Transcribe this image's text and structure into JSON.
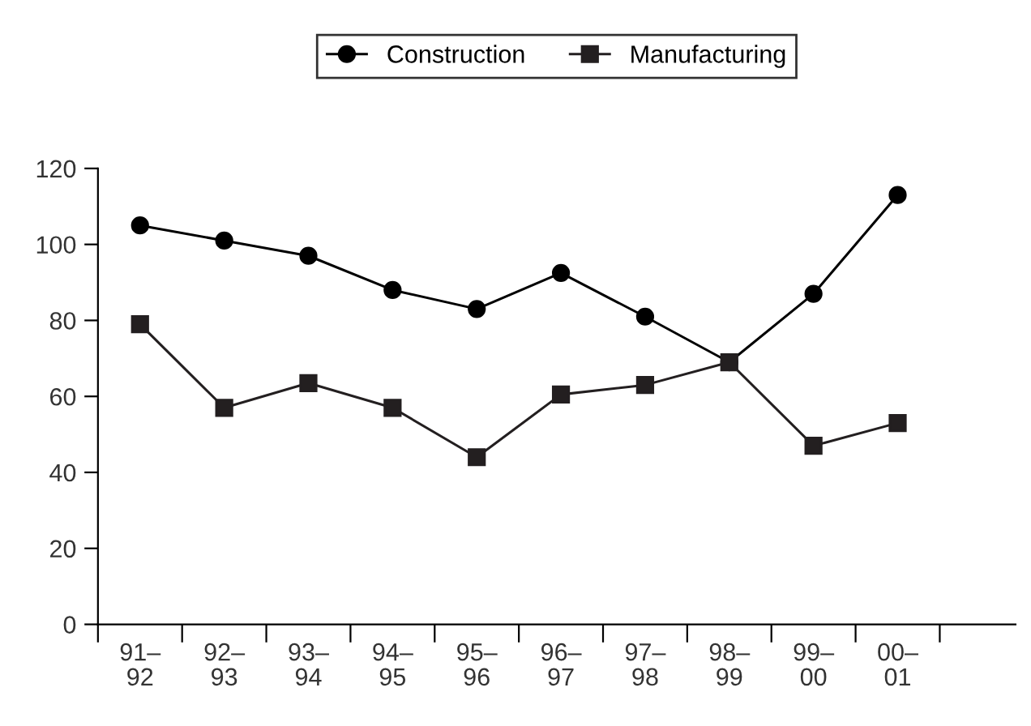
{
  "chart_data": {
    "type": "line",
    "categories": [
      "91–\n92",
      "92–\n93",
      "93–\n94",
      "94–\n95",
      "95–\n96",
      "96–\n97",
      "97–\n98",
      "98–\n99",
      "99–\n00",
      "00–\n01"
    ],
    "series": [
      {
        "name": "Construction",
        "color": "#000000",
        "marker": "circle",
        "values": [
          105,
          101,
          97,
          88,
          83,
          92.5,
          81,
          69,
          87,
          113
        ]
      },
      {
        "name": "Manufacturing",
        "color": "#231f20",
        "marker": "square",
        "values": [
          79,
          57,
          63.5,
          57,
          44,
          60.5,
          63,
          69,
          47,
          53
        ]
      }
    ],
    "ylim": [
      0,
      120
    ],
    "yticks": [
      0,
      20,
      40,
      60,
      80,
      100,
      120
    ],
    "grid": false,
    "legend": "top",
    "line_style": "solid"
  }
}
